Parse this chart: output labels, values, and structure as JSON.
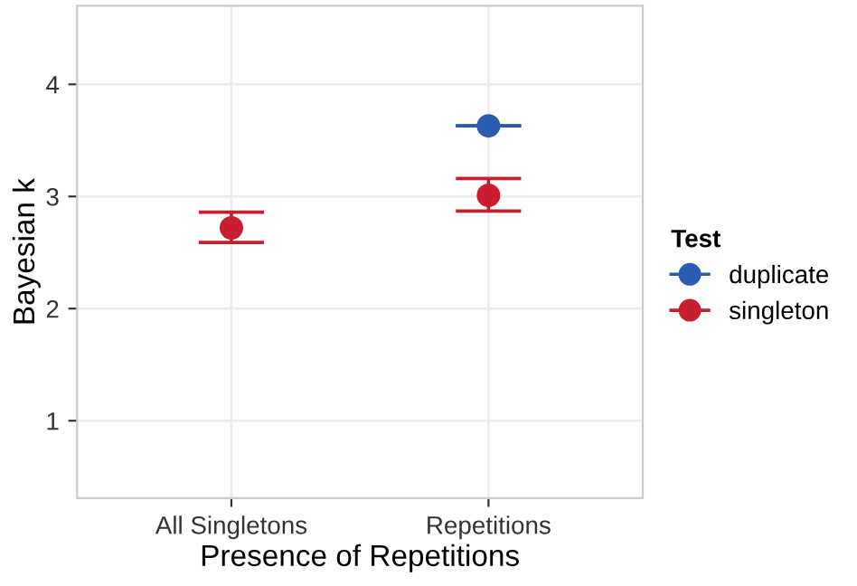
{
  "chart_data": {
    "type": "scatter",
    "xlabel": "Presence of Repetitions",
    "ylabel": "Bayesian k",
    "legend_title": "Test",
    "categories": [
      "All Singletons",
      "Repetitions"
    ],
    "series": [
      {
        "name": "duplicate",
        "color": "#2a5db0",
        "values": [
          null,
          3.63
        ],
        "errors": [
          null,
          0
        ]
      },
      {
        "name": "singleton",
        "color": "#c81e2d",
        "values": [
          2.72,
          3.01
        ],
        "errors": [
          [
            2.59,
            2.86
          ],
          [
            2.87,
            3.16
          ]
        ]
      }
    ],
    "ylim": [
      0.31,
      4.7
    ],
    "yticks": [
      1,
      2,
      3,
      4
    ],
    "grid": true,
    "legend": "right",
    "marker": "circle"
  }
}
